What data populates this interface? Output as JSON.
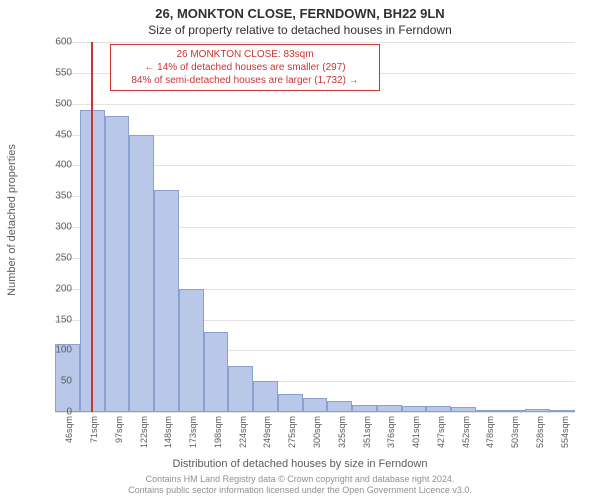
{
  "title_main": "26, MONKTON CLOSE, FERNDOWN, BH22 9LN",
  "title_sub": "Size of property relative to detached houses in Ferndown",
  "ylabel": "Number of detached properties",
  "xlabel": "Distribution of detached houses by size in Ferndown",
  "footer_line1": "Contains HM Land Registry data © Crown copyright and database right 2024.",
  "footer_line2": "Contains public sector information licensed under the Open Government Licence v3.0.",
  "annotation": {
    "line1": "26 MONKTON CLOSE: 83sqm",
    "line2": "← 14% of detached houses are smaller (297)",
    "line3": "84% of semi-detached houses are larger (1,732) →"
  },
  "chart": {
    "type": "histogram",
    "ylim": [
      0,
      600
    ],
    "ytick_step": 50,
    "x_start": 46,
    "x_step": 25.4,
    "bar_color": "#b9c8e8",
    "bar_border_color": "#8aa0d0",
    "grid_color": "#e3e3e3",
    "background_color": "#ffffff",
    "text_color": "#5c5c5c",
    "marker_color": "#cc3333",
    "marker_x_value": 83,
    "label_fontsize": 11,
    "tick_fontsize": 10,
    "x_tick_labels": [
      "46sqm",
      "71sqm",
      "97sqm",
      "122sqm",
      "148sqm",
      "173sqm",
      "198sqm",
      "224sqm",
      "249sqm",
      "275sqm",
      "300sqm",
      "325sqm",
      "351sqm",
      "376sqm",
      "401sqm",
      "427sqm",
      "452sqm",
      "478sqm",
      "503sqm",
      "528sqm",
      "554sqm"
    ],
    "values": [
      110,
      490,
      480,
      450,
      360,
      200,
      130,
      75,
      50,
      30,
      22,
      18,
      12,
      12,
      10,
      10,
      8,
      3,
      2,
      5,
      2
    ]
  }
}
